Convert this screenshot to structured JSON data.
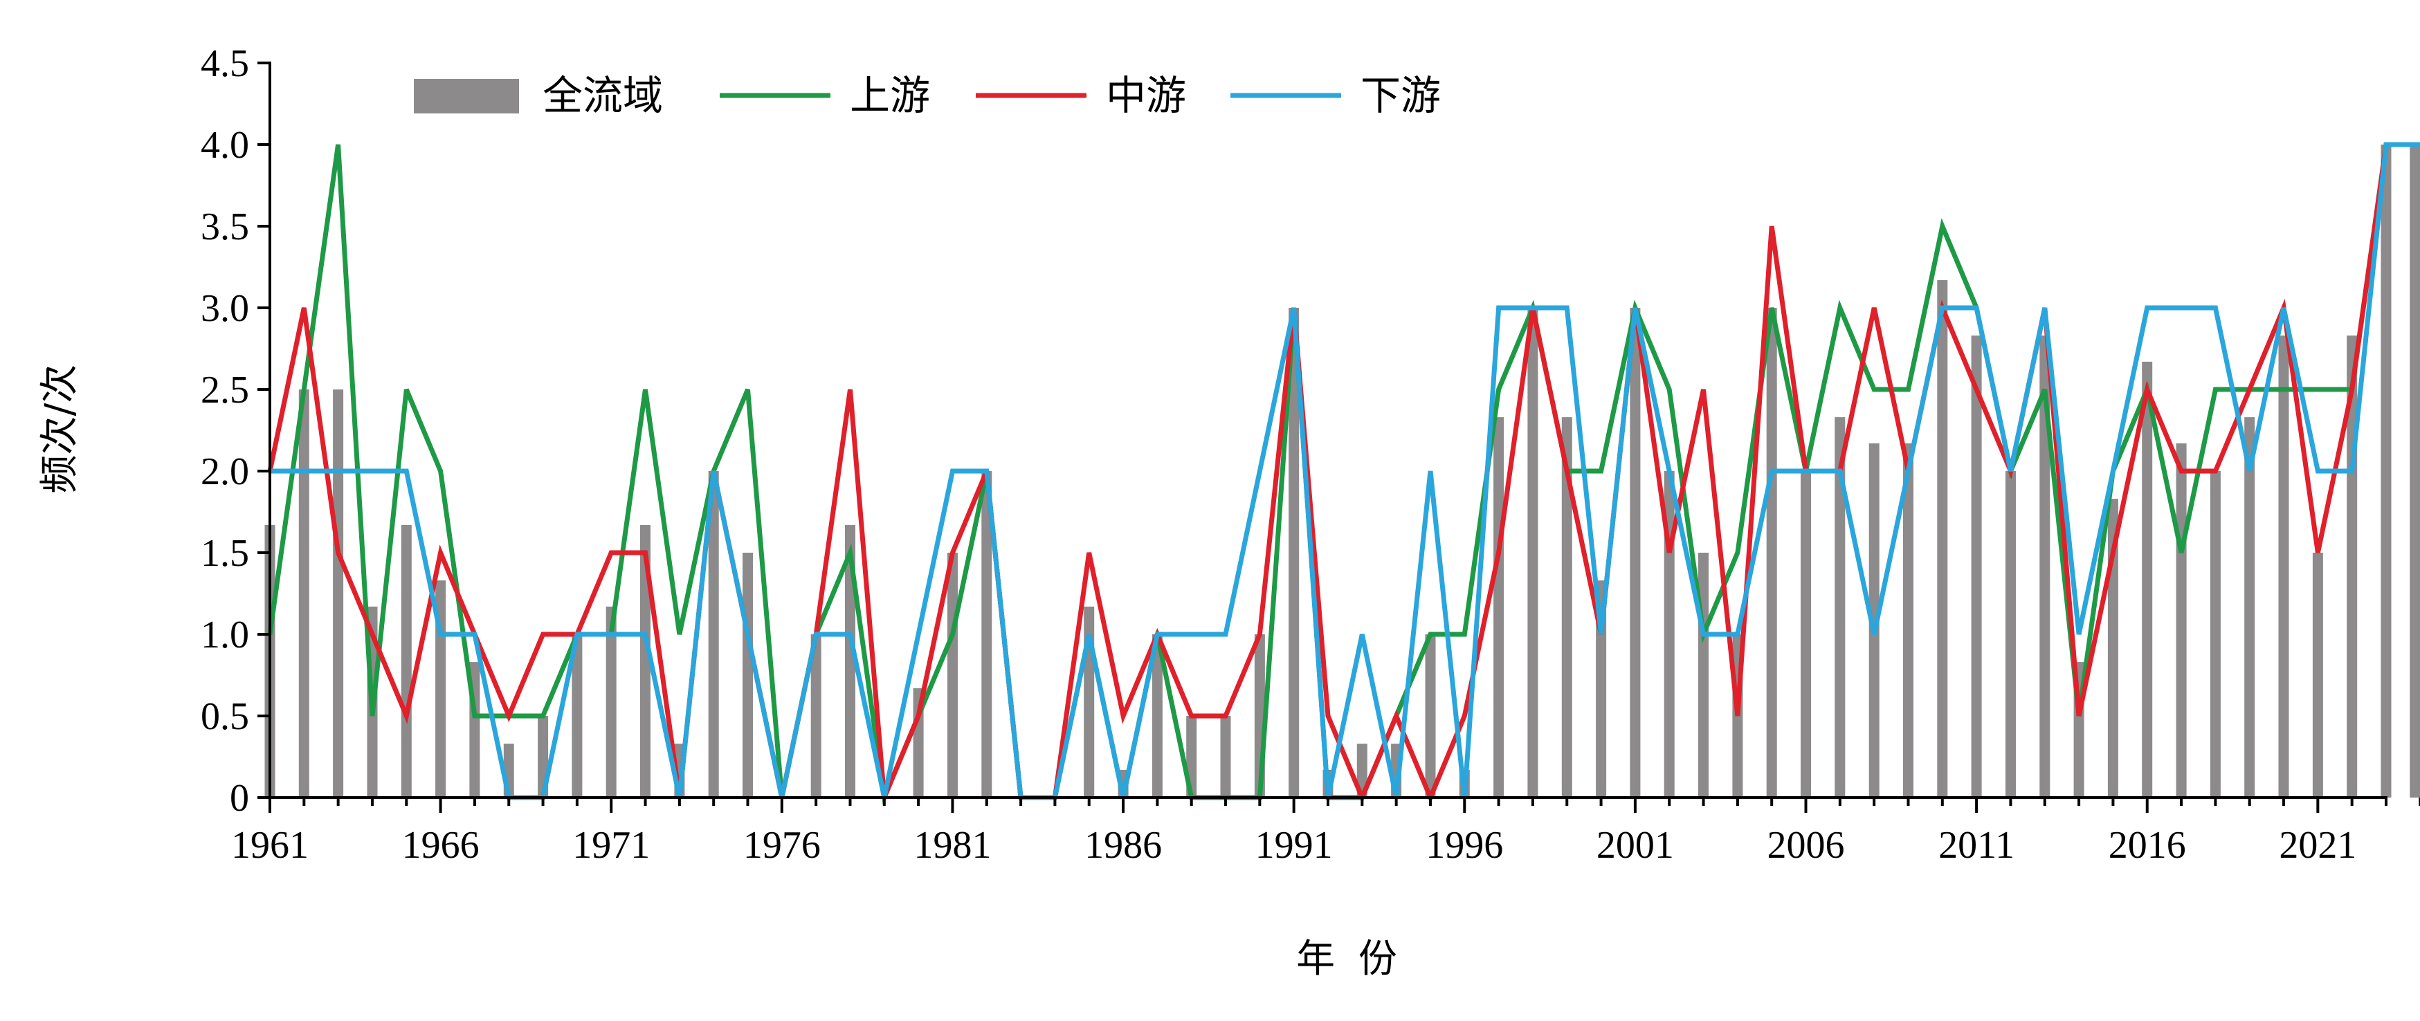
{
  "chart_data": {
    "type": "bar",
    "xlabel": "年 份",
    "ylabel": "频次/次",
    "ylim": [
      0,
      4.5
    ],
    "yticks": [
      "0",
      "0.5",
      "1.0",
      "1.5",
      "2.0",
      "2.5",
      "3.0",
      "3.5",
      "4.0",
      "4.5"
    ],
    "xticks": [
      "1961",
      "1966",
      "1971",
      "1976",
      "1981",
      "1986",
      "1991",
      "1996",
      "2001",
      "2006",
      "2011",
      "2016",
      "2021"
    ],
    "legend_position": "top-left",
    "years": [
      1961,
      1962,
      1963,
      1964,
      1965,
      1966,
      1967,
      1968,
      1969,
      1970,
      1971,
      1972,
      1973,
      1974,
      1975,
      1976,
      1977,
      1978,
      1979,
      1980,
      1981,
      1982,
      1983,
      1984,
      1985,
      1986,
      1987,
      1988,
      1989,
      1990,
      1991,
      1992,
      1993,
      1994,
      1995,
      1996,
      1997,
      1998,
      1999,
      2000,
      2001,
      2002,
      2003,
      2004,
      2005,
      2006,
      2007,
      2008,
      2009,
      2010,
      2011,
      2012,
      2013,
      2014,
      2015,
      2016,
      2017,
      2018,
      2019,
      2020,
      2021,
      2022,
      2023,
      2024
    ],
    "bar_series": {
      "name": "全流域",
      "color": "#8c8a8a",
      "values": [
        1.67,
        2.5,
        2.5,
        1.17,
        1.67,
        1.33,
        0.83,
        0.33,
        0.5,
        1.0,
        1.17,
        1.67,
        0.33,
        2.0,
        1.5,
        0.0,
        1.0,
        1.67,
        0.0,
        0.67,
        1.5,
        2.0,
        0.0,
        0.0,
        1.17,
        0.17,
        1.0,
        0.5,
        0.5,
        1.0,
        3.0,
        0.17,
        0.33,
        0.33,
        1.0,
        0.17,
        2.33,
        3.0,
        2.33,
        1.33,
        3.0,
        2.0,
        1.5,
        1.0,
        3.0,
        2.0,
        2.33,
        2.17,
        2.17,
        3.17,
        2.83,
        2.0,
        2.83,
        0.83,
        1.83,
        2.67,
        2.17,
        2.0,
        2.33,
        2.83,
        1.5,
        2.83,
        4.0,
        4.0
      ]
    },
    "series": [
      {
        "name": "上游",
        "color": "#1e9a46",
        "values": [
          1.0,
          2.5,
          4.0,
          0.5,
          2.5,
          2.0,
          0.5,
          0.5,
          0.5,
          1.0,
          1.0,
          2.5,
          1.0,
          2.0,
          2.5,
          0.0,
          1.0,
          1.5,
          0.0,
          0.5,
          1.0,
          2.0,
          0.0,
          0.0,
          1.0,
          0.0,
          1.0,
          0.0,
          0.0,
          0.0,
          3.0,
          0.0,
          0.0,
          0.5,
          1.0,
          1.0,
          2.5,
          3.0,
          2.0,
          2.0,
          3.0,
          2.5,
          1.0,
          1.5,
          3.0,
          2.0,
          3.0,
          2.5,
          2.5,
          3.5,
          3.0,
          2.0,
          2.5,
          0.5,
          2.0,
          2.5,
          1.5,
          2.5,
          2.5,
          2.5,
          2.5,
          2.5,
          4.0,
          4.0
        ]
      },
      {
        "name": "中游",
        "color": "#e0202a",
        "values": [
          2.0,
          3.0,
          1.5,
          1.0,
          0.5,
          1.5,
          1.0,
          0.5,
          1.0,
          1.0,
          1.5,
          1.5,
          0.0,
          2.0,
          1.0,
          0.0,
          1.0,
          2.5,
          0.0,
          0.5,
          1.5,
          2.0,
          0.0,
          0.0,
          1.5,
          0.5,
          1.0,
          0.5,
          0.5,
          1.0,
          3.0,
          0.5,
          0.0,
          0.5,
          0.0,
          0.5,
          1.5,
          3.0,
          2.0,
          1.0,
          3.0,
          1.5,
          2.5,
          0.5,
          3.5,
          2.0,
          2.0,
          3.0,
          2.0,
          3.0,
          2.5,
          2.0,
          3.0,
          0.5,
          1.5,
          2.5,
          2.0,
          2.0,
          2.5,
          3.0,
          1.5,
          2.5,
          4.0,
          4.0
        ]
      },
      {
        "name": "下游",
        "color": "#2aa6dd",
        "values": [
          2.0,
          2.0,
          2.0,
          2.0,
          2.0,
          1.0,
          1.0,
          0.0,
          0.0,
          1.0,
          1.0,
          1.0,
          0.0,
          2.0,
          1.0,
          0.0,
          1.0,
          1.0,
          0.0,
          1.0,
          2.0,
          2.0,
          0.0,
          0.0,
          1.0,
          0.0,
          1.0,
          1.0,
          1.0,
          2.0,
          3.0,
          0.0,
          1.0,
          0.0,
          2.0,
          0.0,
          3.0,
          3.0,
          3.0,
          1.0,
          3.0,
          2.0,
          1.0,
          1.0,
          2.0,
          2.0,
          2.0,
          1.0,
          2.0,
          3.0,
          3.0,
          2.0,
          3.0,
          1.0,
          2.0,
          3.0,
          3.0,
          3.0,
          2.0,
          3.0,
          2.0,
          2.0,
          4.0,
          4.0
        ]
      }
    ]
  }
}
